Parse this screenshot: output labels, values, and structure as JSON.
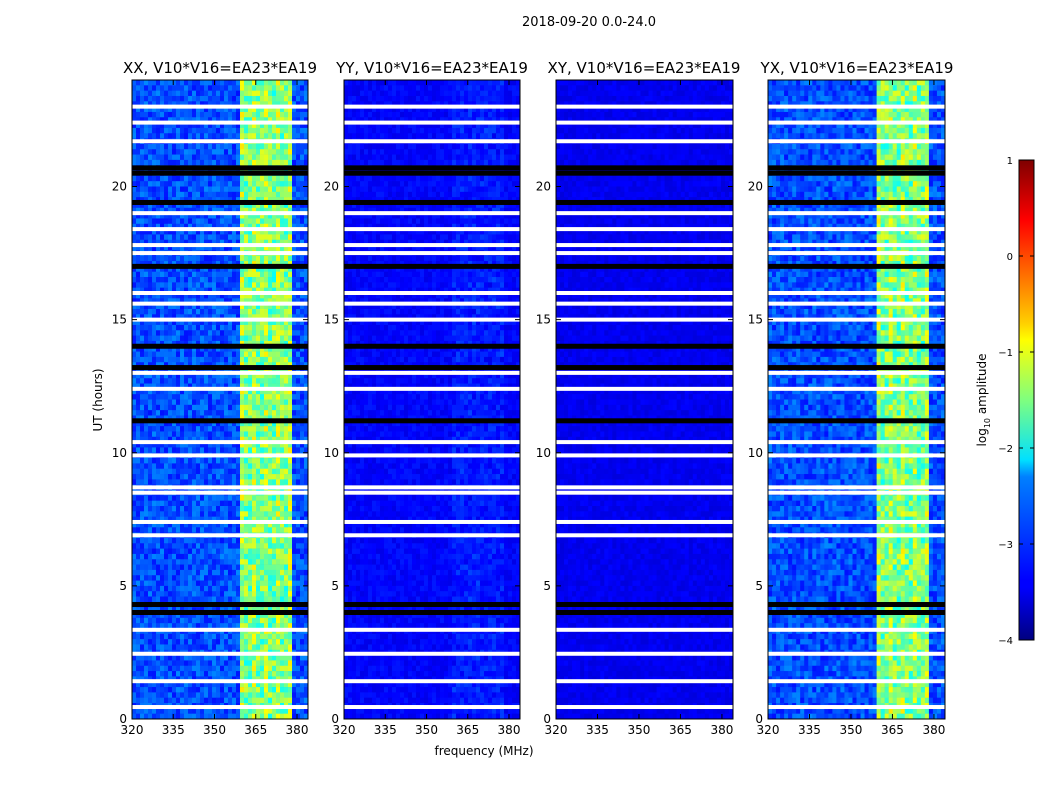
{
  "chart_data": {
    "type": "heatmap",
    "suptitle": "2018-09-20 0.0-24.0",
    "panels": [
      {
        "title": "XX, V10*V16=EA23*EA19",
        "kind": "parallel"
      },
      {
        "title": "YY, V10*V16=EA23*EA19",
        "kind": "parallel_low"
      },
      {
        "title": "XY, V10*V16=EA23*EA19",
        "kind": "cross"
      },
      {
        "title": "YX, V10*V16=EA23*EA19",
        "kind": "parallel"
      }
    ],
    "xlabel": "frequency (MHz)",
    "ylabel": "UT (hours)",
    "xlim": [
      320,
      384
    ],
    "ylim": [
      0,
      24
    ],
    "xticks": [
      320,
      335,
      350,
      365,
      380
    ],
    "yticks": [
      0,
      5,
      10,
      15,
      20
    ],
    "colorbar": {
      "label": "log10 amplitude",
      "label_main": "log",
      "label_sub": "10",
      "label_tail": " amplitude",
      "range": [
        -4,
        1
      ],
      "ticks": [
        "1",
        "0",
        "−1",
        "−2",
        "−3",
        "−4"
      ],
      "tick_values": [
        1,
        0,
        -1,
        -2,
        -3,
        -4
      ],
      "colormap": "jet"
    },
    "rfi_band_mhz": [
      360,
      378
    ],
    "flagged_hours_white": [
      0.45,
      1.42,
      2.45,
      3.35,
      6.9,
      7.4,
      8.5,
      8.7,
      9.9,
      10.4,
      12.4,
      13.0,
      15.0,
      15.6,
      16.0,
      17.5,
      17.8,
      18.4,
      19.0,
      21.7,
      22.4,
      23.0
    ],
    "flagged_hours_black": [
      4.0,
      4.3,
      11.2,
      13.2,
      14.0,
      17.0,
      19.4,
      20.5,
      20.7
    ],
    "colors": {
      "cmap_low": "#00007f",
      "cmap_high": "#7f0000",
      "flag_white": "#ffffff",
      "flag_black": "#000000"
    }
  }
}
